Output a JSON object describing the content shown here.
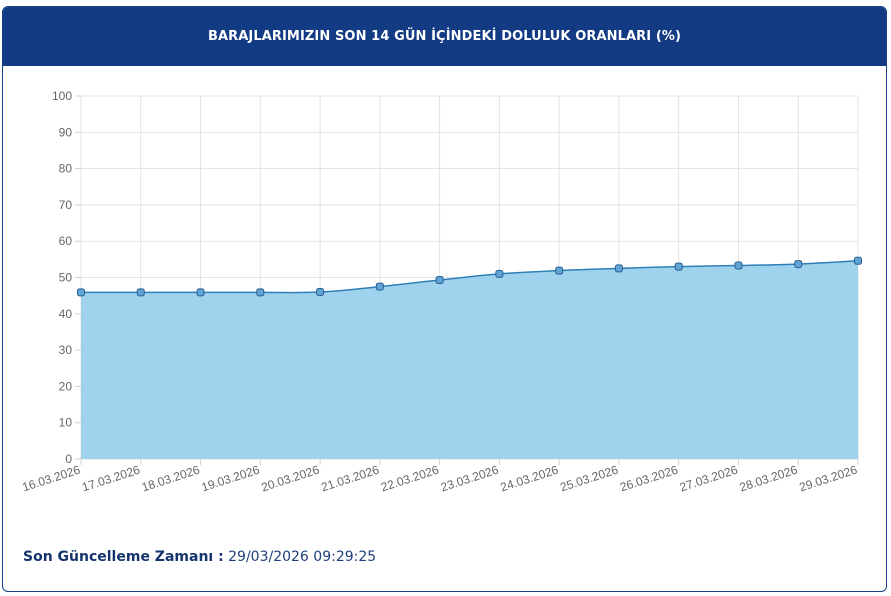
{
  "header": {
    "title": "BARAJLARIMIZIN SON 14 GÜN İÇİNDEKİ DOLULUK ORANLARI (%)"
  },
  "footer": {
    "label": "Son Güncelleme Zamanı :",
    "value": "29/03/2026 09:29:25"
  },
  "colors": {
    "header_bg": "#123b84",
    "area_fill": "#9ad0ec",
    "line": "#2f7fb8",
    "marker": "#5fa4d4"
  },
  "chart_data": {
    "type": "area",
    "categories": [
      "16.03.2026",
      "17.03.2026",
      "18.03.2026",
      "19.03.2026",
      "20.03.2026",
      "21.03.2026",
      "22.03.2026",
      "23.03.2026",
      "24.03.2026",
      "25.03.2026",
      "26.03.2026",
      "27.03.2026",
      "28.03.2026",
      "29.03.2026"
    ],
    "values": [
      45.9,
      45.9,
      45.9,
      45.9,
      46.0,
      47.5,
      49.3,
      51.0,
      51.9,
      52.5,
      53.0,
      53.3,
      53.7,
      54.6
    ],
    "ylim": [
      0,
      100
    ],
    "yticks": [
      0,
      10,
      20,
      30,
      40,
      50,
      60,
      70,
      80,
      90,
      100
    ],
    "grid": true,
    "title": "",
    "xlabel": "",
    "ylabel": ""
  }
}
